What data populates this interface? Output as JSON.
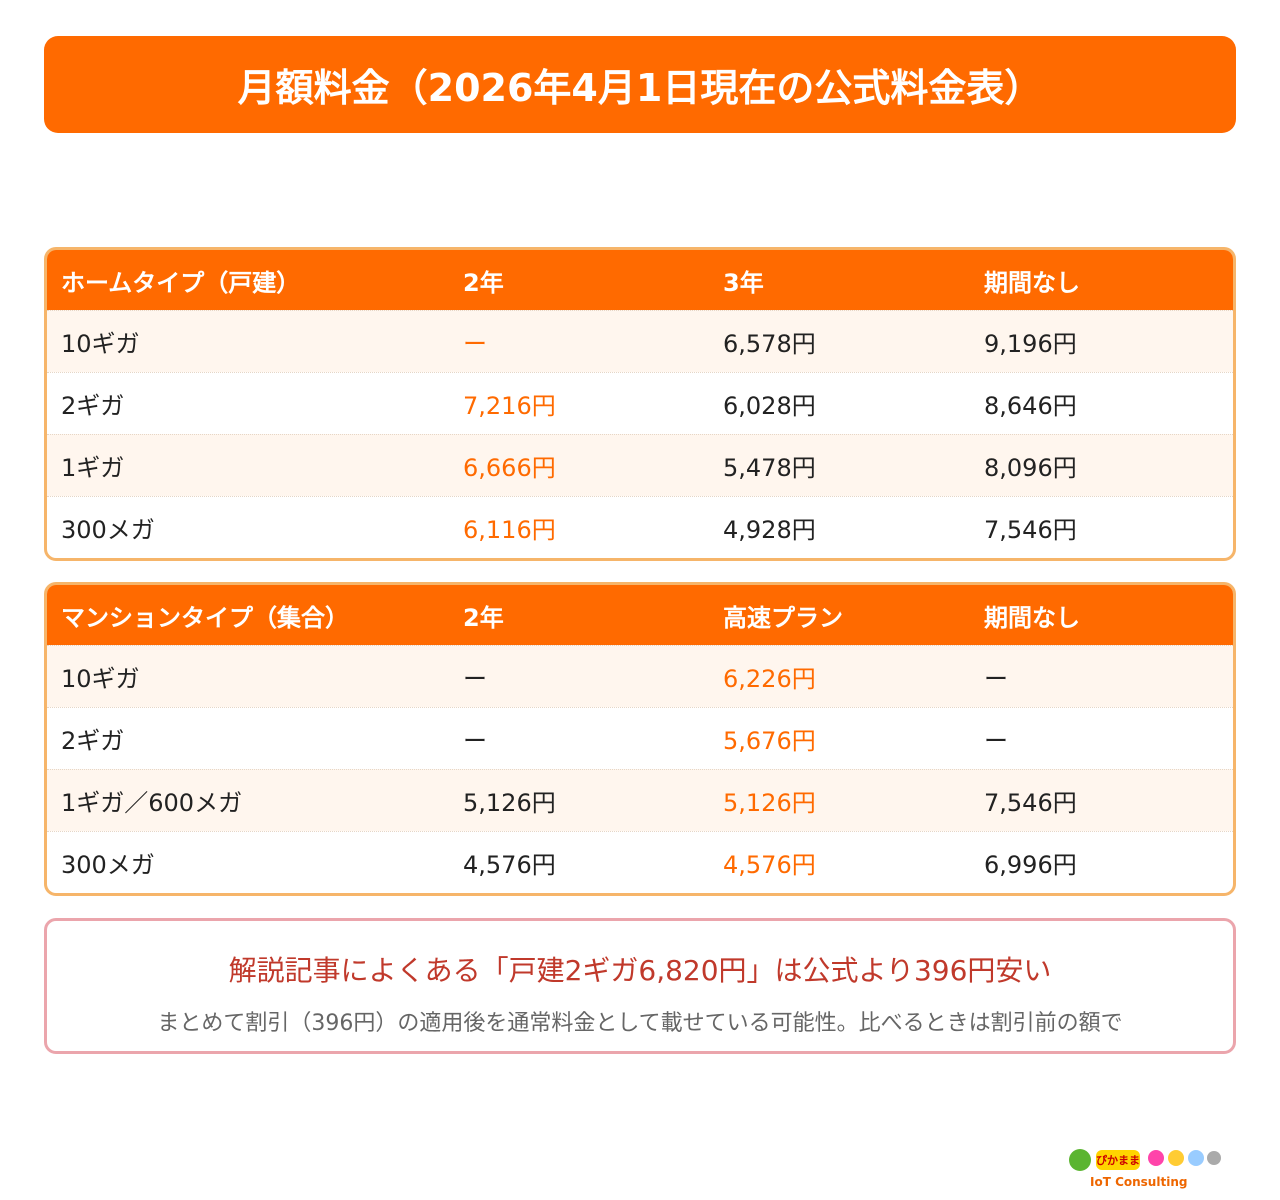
{
  "header": {
    "title": "月額料金（2026年4月1日現在の公式料金表）"
  },
  "tables": [
    {
      "headers": [
        "ホームタイプ（戸建）",
        "2年",
        "3年",
        "期間なし"
      ],
      "highlight_column": 1,
      "rows": [
        [
          "10ギガ",
          "ー",
          "6,578円",
          "9,196円"
        ],
        [
          "2ギガ",
          "7,216円",
          "6,028円",
          "8,646円"
        ],
        [
          "1ギガ",
          "6,666円",
          "5,478円",
          "8,096円"
        ],
        [
          "300メガ",
          "6,116円",
          "4,928円",
          "7,546円"
        ]
      ]
    },
    {
      "headers": [
        "マンションタイプ（集合）",
        "2年",
        "高速プラン",
        "期間なし"
      ],
      "highlight_column": 2,
      "rows": [
        [
          "10ギガ",
          "ー",
          "6,226円",
          "ー"
        ],
        [
          "2ギガ",
          "ー",
          "5,676円",
          "ー"
        ],
        [
          "1ギガ／600メガ",
          "5,126円",
          "5,126円",
          "7,546円"
        ],
        [
          "300メガ",
          "4,576円",
          "4,576円",
          "6,996円"
        ]
      ]
    }
  ],
  "note": {
    "title": "解説記事によくある「戸建2ギガ6,820円」は公式より396円安い",
    "body": "まとめて割引（396円）の適用後を通常料金として載せている可能性。比べるときは割引前の額で"
  },
  "logo": {
    "name": "ぴかまま",
    "sub": "IoT Consulting"
  }
}
